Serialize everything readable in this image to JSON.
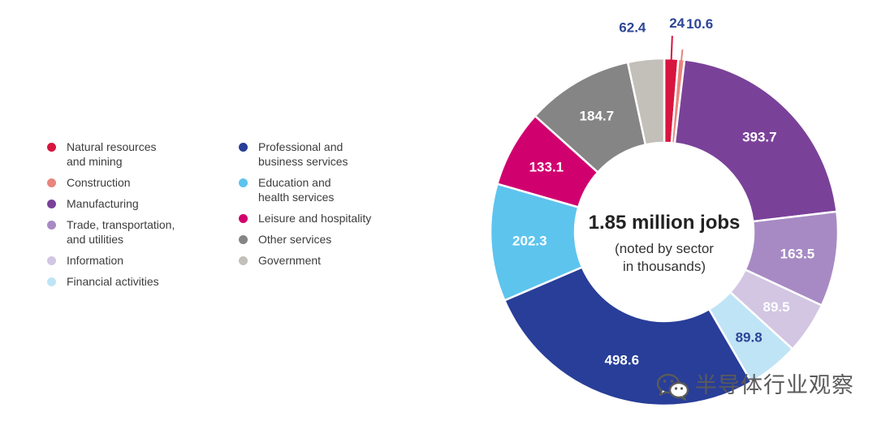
{
  "chart_data": {
    "type": "pie",
    "donut": true,
    "center_title": "1.85 million jobs",
    "center_subtitle": [
      "(noted by sector",
      "in thousands)"
    ],
    "legend_placement": "left",
    "slices": [
      {
        "label": "Natural resources\nand mining",
        "value": 24,
        "display": "24",
        "color": "#d8153f",
        "label_color": "#2d4596",
        "label_outside": true
      },
      {
        "label": "Construction",
        "value": 10.6,
        "display": "10.6",
        "color": "#e8857d",
        "label_color": "#2d4596",
        "label_outside": true
      },
      {
        "label": "Manufacturing",
        "value": 393.7,
        "display": "393.7",
        "color": "#7a4199",
        "label_color": "#ffffff",
        "label_outside": false
      },
      {
        "label": "Trade, transportation,\nand utilities",
        "value": 163.5,
        "display": "163.5",
        "color": "#a78ac4",
        "label_color": "#ffffff",
        "label_outside": false
      },
      {
        "label": "Information",
        "value": 89.5,
        "display": "89.5",
        "color": "#d2c6e3",
        "label_color": "#ffffff",
        "label_outside": false
      },
      {
        "label": "Financial activities",
        "value": 89.8,
        "display": "89.8",
        "color": "#bfe4f6",
        "label_color": "#2d4596",
        "label_outside": false
      },
      {
        "label": "Professional and\nbusiness services",
        "value": 498.6,
        "display": "498.6",
        "color": "#283e98",
        "label_color": "#ffffff",
        "label_outside": false
      },
      {
        "label": "Education and\nhealth services",
        "value": 202.3,
        "display": "202.3",
        "color": "#5dc4ee",
        "label_color": "#ffffff",
        "label_outside": false
      },
      {
        "label": "Leisure and hospitality",
        "value": 133.1,
        "display": "133.1",
        "color": "#d1006f",
        "label_color": "#ffffff",
        "label_outside": false
      },
      {
        "label": "Other services",
        "value": 184.7,
        "display": "184.7",
        "color": "#858585",
        "label_color": "#ffffff",
        "label_outside": false
      },
      {
        "label": "Government",
        "value": 62.4,
        "display": "62.4",
        "color": "#c3bfb9",
        "label_color": "#2d4596",
        "label_outside": true
      }
    ],
    "legend_order": [
      [
        "Natural resources\nand mining",
        "Construction",
        "Manufacturing",
        "Trade, transportation,\nand utilities",
        "Information",
        "Financial activities"
      ],
      [
        "Professional and\nbusiness services",
        "Education and\nhealth services",
        "Leisure and hospitality",
        "Other services",
        "Government"
      ]
    ]
  },
  "watermark": {
    "text": "半导体行业观察",
    "icon": "wechat-icon",
    "color": "#5a5a5a"
  }
}
